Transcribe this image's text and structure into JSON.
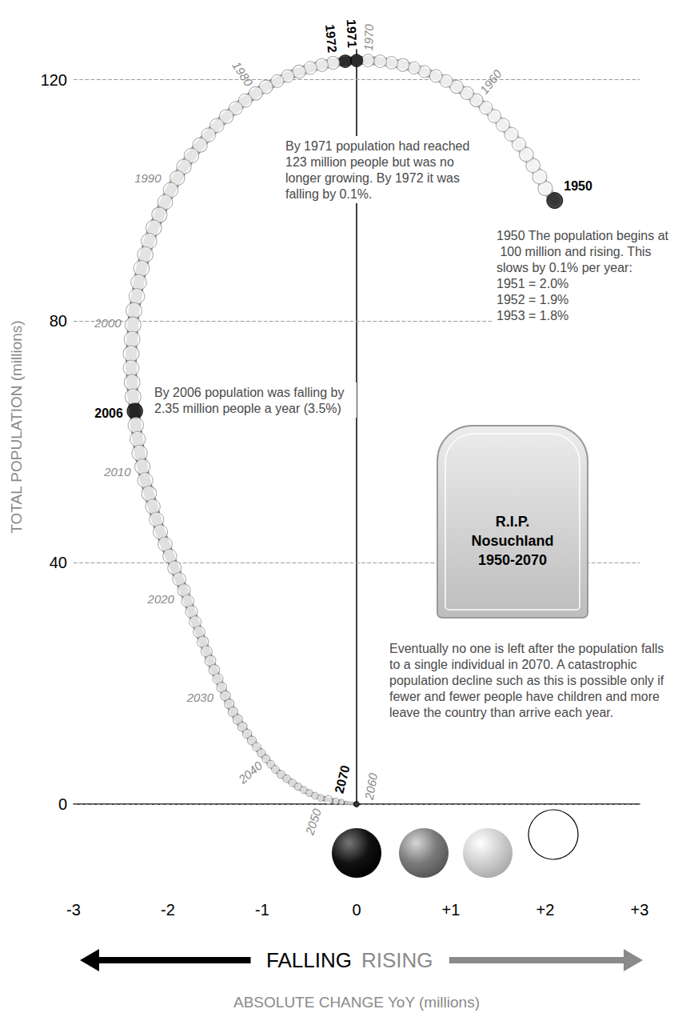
{
  "chart_data": {
    "type": "line",
    "x_label": "ABSOLUTE CHANGE YoY (millions)",
    "y_label": "TOTAL POPULATION (millions)",
    "direction_labels": [
      "FALLING",
      "RISING"
    ],
    "years": [
      1950,
      1951,
      1952,
      1953,
      1954,
      1955,
      1956,
      1957,
      1958,
      1959,
      1960,
      1961,
      1962,
      1963,
      1964,
      1965,
      1966,
      1967,
      1968,
      1969,
      1970,
      1971,
      1972,
      1973,
      1974,
      1975,
      1976,
      1977,
      1978,
      1979,
      1980,
      1981,
      1982,
      1983,
      1984,
      1985,
      1986,
      1987,
      1988,
      1989,
      1990,
      1991,
      1992,
      1993,
      1994,
      1995,
      1996,
      1997,
      1998,
      1999,
      2000,
      2001,
      2002,
      2003,
      2004,
      2005,
      2006,
      2007,
      2008,
      2009,
      2010,
      2011,
      2012,
      2013,
      2014,
      2015,
      2016,
      2017,
      2018,
      2019,
      2020,
      2021,
      2022,
      2023,
      2024,
      2025,
      2026,
      2027,
      2028,
      2029,
      2030,
      2031,
      2032,
      2033,
      2034,
      2035,
      2036,
      2037,
      2038,
      2039,
      2040,
      2041,
      2042,
      2043,
      2044,
      2045,
      2046,
      2047,
      2048,
      2049,
      2050,
      2051,
      2052,
      2053,
      2054,
      2055,
      2056,
      2057,
      2058,
      2059,
      2060,
      2061,
      2062,
      2063,
      2064,
      2065,
      2066,
      2067,
      2068,
      2069,
      2070
    ],
    "labels": [
      "1950",
      null,
      null,
      null,
      null,
      null,
      null,
      null,
      null,
      null,
      "1960",
      null,
      null,
      null,
      null,
      null,
      null,
      null,
      null,
      null,
      "1970",
      "1971",
      "1972",
      null,
      null,
      null,
      null,
      null,
      null,
      null,
      "1980",
      null,
      null,
      null,
      null,
      null,
      null,
      null,
      null,
      null,
      "1990",
      null,
      null,
      null,
      null,
      null,
      null,
      null,
      null,
      null,
      "2000",
      null,
      null,
      null,
      null,
      null,
      "2006",
      null,
      null,
      null,
      "2010",
      null,
      null,
      null,
      null,
      null,
      null,
      null,
      null,
      null,
      "2020",
      null,
      null,
      null,
      null,
      null,
      null,
      null,
      null,
      null,
      "2030",
      null,
      null,
      null,
      null,
      null,
      null,
      null,
      null,
      null,
      "2040",
      null,
      null,
      null,
      null,
      null,
      null,
      null,
      null,
      null,
      "2050",
      null,
      null,
      null,
      null,
      null,
      null,
      null,
      null,
      null,
      "2060",
      null,
      null,
      null,
      null,
      null,
      null,
      null,
      null,
      null,
      "2070"
    ],
    "x": [
      2.1,
      2.0,
      1.94,
      1.87,
      1.8,
      1.72,
      1.64,
      1.55,
      1.46,
      1.37,
      1.27,
      1.17,
      1.06,
      0.95,
      0.84,
      0.72,
      0.61,
      0.49,
      0.37,
      0.25,
      0.12,
      0,
      -0.12,
      -0.25,
      -0.37,
      -0.49,
      -0.61,
      -0.73,
      -0.84,
      -0.96,
      -1.07,
      -1.18,
      -1.28,
      -1.38,
      -1.48,
      -1.57,
      -1.66,
      -1.75,
      -1.83,
      -1.9,
      -1.97,
      -2.03,
      -2.09,
      -2.15,
      -2.2,
      -2.24,
      -2.28,
      -2.31,
      -2.33,
      -2.36,
      -2.37,
      -2.38,
      -2.39,
      -2.39,
      -2.38,
      -2.37,
      -2.35,
      -2.34,
      -2.32,
      -2.3,
      -2.27,
      -2.24,
      -2.2,
      -2.16,
      -2.12,
      -2.08,
      -2.03,
      -1.98,
      -1.93,
      -1.88,
      -1.83,
      -1.79,
      -1.75,
      -1.71,
      -1.67,
      -1.63,
      -1.59,
      -1.55,
      -1.51,
      -1.47,
      -1.43,
      -1.39,
      -1.35,
      -1.31,
      -1.26,
      -1.21,
      -1.16,
      -1.11,
      -1.06,
      -1.01,
      -0.96,
      -0.91,
      -0.86,
      -0.8,
      -0.74,
      -0.68,
      -0.62,
      -0.56,
      -0.5,
      -0.44,
      -0.38,
      -0.3,
      -0.22,
      -0.16,
      -0.11,
      -0.08,
      -0.05,
      -0.03,
      -0.02,
      -0.02,
      -0.01,
      -0.01,
      -0.005,
      -0.005,
      -0.003,
      -0.002,
      -0.002,
      -0.001,
      -0.001,
      -0.0005,
      -0.0005
    ],
    "values": [
      100,
      102,
      103.94,
      105.81,
      107.61,
      109.33,
      110.97,
      112.52,
      113.98,
      115.35,
      116.62,
      117.79,
      118.85,
      119.8,
      120.64,
      121.36,
      121.97,
      122.46,
      122.83,
      123.07,
      123.19,
      123.19,
      123.07,
      122.82,
      122.45,
      121.96,
      121.35,
      120.62,
      119.78,
      118.82,
      117.75,
      116.57,
      115.29,
      113.91,
      112.43,
      110.86,
      109.2,
      107.45,
      105.62,
      103.72,
      101.75,
      99.72,
      97.63,
      95.48,
      93.28,
      91.04,
      88.76,
      86.45,
      84.12,
      81.76,
      79.39,
      77.01,
      74.62,
      72.23,
      69.85,
      67.48,
      65.12,
      62.78,
      60.46,
      58.16,
      55.89,
      53.65,
      51.45,
      49.29,
      47.17,
      45.09,
      43.06,
      41.08,
      39.15,
      37.27,
      35.44,
      33.65,
      31.9,
      30.19,
      28.52,
      26.89,
      25.3,
      23.75,
      22.24,
      20.77,
      19.34,
      17.95,
      16.6,
      15.29,
      14.03,
      12.82,
      11.66,
      10.55,
      9.49,
      8.48,
      7.52,
      6.61,
      5.75,
      4.95,
      4.21,
      3.53,
      2.91,
      2.35,
      1.85,
      1.41,
      1.03,
      0.73,
      0.51,
      0.35,
      0.24,
      0.16,
      0.11,
      0.08,
      0.06,
      0.04,
      0.03,
      0.02,
      0.015,
      0.01,
      0.007,
      0.005,
      0.003,
      0.002,
      0.001,
      0.0005,
      1e-06
    ],
    "xlim": [
      -3,
      3
    ],
    "xticks": [
      -3,
      -2,
      -1,
      0,
      {
        "value": 1,
        "label": "+1"
      },
      {
        "value": 2,
        "label": "+2"
      },
      {
        "value": 3,
        "label": "+3"
      }
    ],
    "ylim": [
      0,
      125
    ],
    "yticks": [
      0,
      40,
      80,
      120
    ],
    "grid": true,
    "annotations": [
      {
        "years": [
          1950
        ],
        "text": "1950 The population begins at 100 million and rising. This slows by 0.1% per year:",
        "lines": [
          "1951 = 2.0%",
          "1952 = 1.9%",
          "1953 = 1.8%"
        ]
      },
      {
        "years": [
          1971,
          1972
        ],
        "text": "By 1971 population had reached 123 million people but was no longer growing. By 1972 it was falling by 0.1%."
      },
      {
        "years": [
          2006
        ],
        "text": "By 2006 population was falling by 2.35 million people a year (3.5%)"
      },
      {
        "years": [
          2070
        ],
        "text": "Eventually no one is left after the population falls to a single individual in 2070. A catastrophic population decline such as this is possible only if fewer and fewer people have children and more leave the country than arrive each year."
      }
    ],
    "tombstone": [
      "R.I.P.",
      "Nosuchland",
      "1950-2070"
    ]
  }
}
